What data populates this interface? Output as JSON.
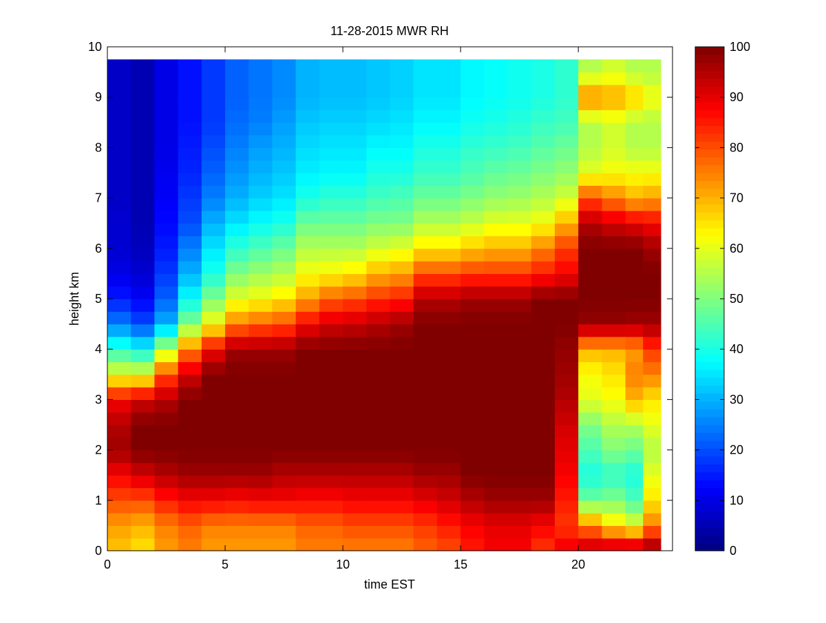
{
  "chart_data": {
    "type": "heatmap",
    "title": "11-28-2015 MWR RH",
    "xlabel": "time EST",
    "ylabel": "height km",
    "xlim": [
      0,
      24
    ],
    "ylim": [
      0,
      10
    ],
    "xticks": [
      0,
      5,
      10,
      15,
      20
    ],
    "yticks": [
      0,
      1,
      2,
      3,
      4,
      5,
      6,
      7,
      8,
      9,
      10
    ],
    "colorbar": {
      "colormap": "jet",
      "clim": [
        0,
        100
      ],
      "ticks": [
        0,
        10,
        20,
        30,
        40,
        50,
        60,
        70,
        80,
        90,
        100
      ]
    },
    "x_centers": [
      0.5,
      1.5,
      2.5,
      3.5,
      4.5,
      5.5,
      6.5,
      7.5,
      8.5,
      9.5,
      10.5,
      11.5,
      12.5,
      13.5,
      14.5,
      15.5,
      16.5,
      17.5,
      18.5,
      19.5,
      20.5,
      21.5,
      22.5,
      23.0
    ],
    "profile_heights": [
      0,
      0.5,
      1,
      1.5,
      2,
      2.5,
      3,
      3.5,
      4,
      4.5,
      5,
      5.5,
      6,
      6.5,
      7,
      7.5,
      8,
      8.5,
      9,
      9.5
    ],
    "profiles": [
      [
        68,
        72,
        80,
        88,
        97,
        95,
        88,
        60,
        42,
        25,
        15,
        10,
        8,
        8,
        7,
        7,
        7,
        7,
        7,
        7
      ],
      [
        65,
        70,
        80,
        92,
        100,
        100,
        92,
        60,
        38,
        20,
        12,
        8,
        6,
        5,
        5,
        5,
        5,
        5,
        5,
        5
      ],
      [
        72,
        75,
        85,
        95,
        100,
        100,
        95,
        80,
        55,
        30,
        22,
        18,
        15,
        13,
        12,
        11,
        10,
        10,
        10,
        10
      ],
      [
        75,
        78,
        88,
        97,
        100,
        100,
        100,
        92,
        75,
        50,
        38,
        30,
        25,
        20,
        18,
        16,
        15,
        14,
        14,
        14
      ],
      [
        72,
        75,
        88,
        97,
        100,
        100,
        100,
        100,
        88,
        62,
        50,
        40,
        35,
        30,
        25,
        22,
        20,
        18,
        18,
        18
      ],
      [
        72,
        75,
        87,
        97,
        100,
        100,
        100,
        100,
        97,
        75,
        60,
        50,
        42,
        35,
        30,
        27,
        25,
        23,
        22,
        22
      ],
      [
        72,
        75,
        88,
        97,
        100,
        100,
        100,
        100,
        97,
        78,
        62,
        53,
        45,
        38,
        33,
        30,
        28,
        25,
        24,
        24
      ],
      [
        72,
        75,
        88,
        95,
        100,
        100,
        100,
        100,
        97,
        80,
        65,
        55,
        48,
        40,
        35,
        32,
        30,
        28,
        26,
        26
      ],
      [
        75,
        78,
        87,
        95,
        100,
        100,
        100,
        100,
        100,
        88,
        72,
        62,
        55,
        48,
        40,
        36,
        34,
        32,
        30,
        30
      ],
      [
        75,
        78,
        87,
        95,
        100,
        100,
        100,
        100,
        100,
        92,
        78,
        63,
        55,
        48,
        42,
        37,
        35,
        33,
        31,
        31
      ],
      [
        75,
        80,
        88,
        95,
        100,
        100,
        100,
        100,
        100,
        93,
        80,
        65,
        55,
        48,
        42,
        37,
        35,
        33,
        31,
        31
      ],
      [
        75,
        80,
        88,
        95,
        100,
        100,
        100,
        100,
        100,
        95,
        83,
        70,
        58,
        50,
        44,
        40,
        37,
        34,
        32,
        32
      ],
      [
        75,
        80,
        88,
        95,
        100,
        100,
        100,
        100,
        100,
        97,
        85,
        72,
        60,
        50,
        45,
        40,
        37,
        35,
        33,
        33
      ],
      [
        78,
        82,
        90,
        97,
        100,
        100,
        100,
        100,
        100,
        100,
        95,
        80,
        65,
        55,
        48,
        43,
        40,
        37,
        35,
        35
      ],
      [
        80,
        85,
        92,
        97,
        100,
        100,
        100,
        100,
        100,
        100,
        95,
        80,
        65,
        55,
        48,
        43,
        40,
        37,
        35,
        35
      ],
      [
        85,
        88,
        95,
        100,
        100,
        100,
        100,
        100,
        100,
        100,
        97,
        82,
        68,
        57,
        50,
        45,
        42,
        39,
        37,
        37
      ],
      [
        88,
        90,
        97,
        100,
        100,
        100,
        100,
        100,
        100,
        100,
        97,
        82,
        70,
        60,
        52,
        47,
        43,
        40,
        38,
        38
      ],
      [
        88,
        90,
        97,
        100,
        100,
        100,
        100,
        100,
        100,
        100,
        97,
        82,
        70,
        60,
        53,
        48,
        44,
        41,
        39,
        39
      ],
      [
        82,
        88,
        97,
        100,
        100,
        100,
        100,
        100,
        100,
        100,
        100,
        85,
        75,
        62,
        55,
        50,
        46,
        43,
        40,
        40
      ],
      [
        90,
        82,
        85,
        88,
        90,
        92,
        95,
        97,
        98,
        100,
        100,
        88,
        82,
        70,
        58,
        52,
        48,
        44,
        42,
        42
      ],
      [
        95,
        75,
        48,
        40,
        45,
        50,
        60,
        62,
        70,
        98,
        100,
        100,
        100,
        95,
        80,
        60,
        55,
        55,
        75,
        55
      ],
      [
        97,
        65,
        50,
        42,
        50,
        55,
        62,
        65,
        70,
        98,
        100,
        100,
        100,
        92,
        75,
        62,
        58,
        58,
        72,
        58
      ],
      [
        98,
        60,
        45,
        40,
        48,
        55,
        70,
        75,
        72,
        97,
        100,
        100,
        100,
        90,
        70,
        62,
        55,
        55,
        68,
        55
      ],
      [
        100,
        75,
        65,
        60,
        55,
        60,
        65,
        75,
        82,
        97,
        100,
        100,
        97,
        88,
        72,
        62,
        55,
        55,
        62,
        55
      ]
    ]
  }
}
